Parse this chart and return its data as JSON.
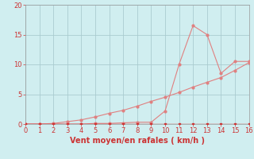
{
  "xlabel": "Vent moyen/en rafales ( km/h )",
  "xlim": [
    0,
    16
  ],
  "ylim": [
    0,
    20
  ],
  "xticks": [
    0,
    1,
    2,
    3,
    4,
    5,
    6,
    7,
    8,
    9,
    10,
    11,
    12,
    13,
    14,
    15,
    16
  ],
  "yticks": [
    0,
    5,
    10,
    15,
    20
  ],
  "background_color": "#d0eef0",
  "grid_color": "#aaccd0",
  "line_color": "#e08080",
  "marker_color_dark": "#cc3333",
  "marker_color_light": "#e08080",
  "line1_x": [
    0,
    1,
    2,
    3,
    4,
    5,
    6,
    7,
    8,
    9,
    10,
    11,
    12,
    13,
    14,
    15,
    16
  ],
  "line1_y": [
    0,
    0,
    0.1,
    0.4,
    0.7,
    1.2,
    1.8,
    2.3,
    3.0,
    3.8,
    4.5,
    5.3,
    6.2,
    7.0,
    7.8,
    9.0,
    10.3
  ],
  "line2_x": [
    0,
    1,
    2,
    3,
    4,
    5,
    6,
    7,
    8,
    9,
    10,
    11,
    12,
    13,
    14,
    15,
    16
  ],
  "line2_y": [
    0,
    0,
    0,
    0,
    0,
    0.1,
    0.1,
    0.2,
    0.3,
    0.3,
    2.2,
    10.0,
    16.5,
    15.0,
    8.5,
    10.5,
    10.5
  ],
  "line3_x": [
    0,
    1,
    2,
    3,
    4,
    5,
    6,
    7,
    8,
    9,
    10,
    11,
    12,
    13,
    14,
    15,
    16
  ],
  "line3_y": [
    0,
    0,
    0,
    0,
    0,
    0,
    0,
    0,
    0,
    0,
    0,
    0,
    0,
    0,
    0,
    0,
    0
  ],
  "tick_fontsize": 6,
  "xlabel_fontsize": 7
}
